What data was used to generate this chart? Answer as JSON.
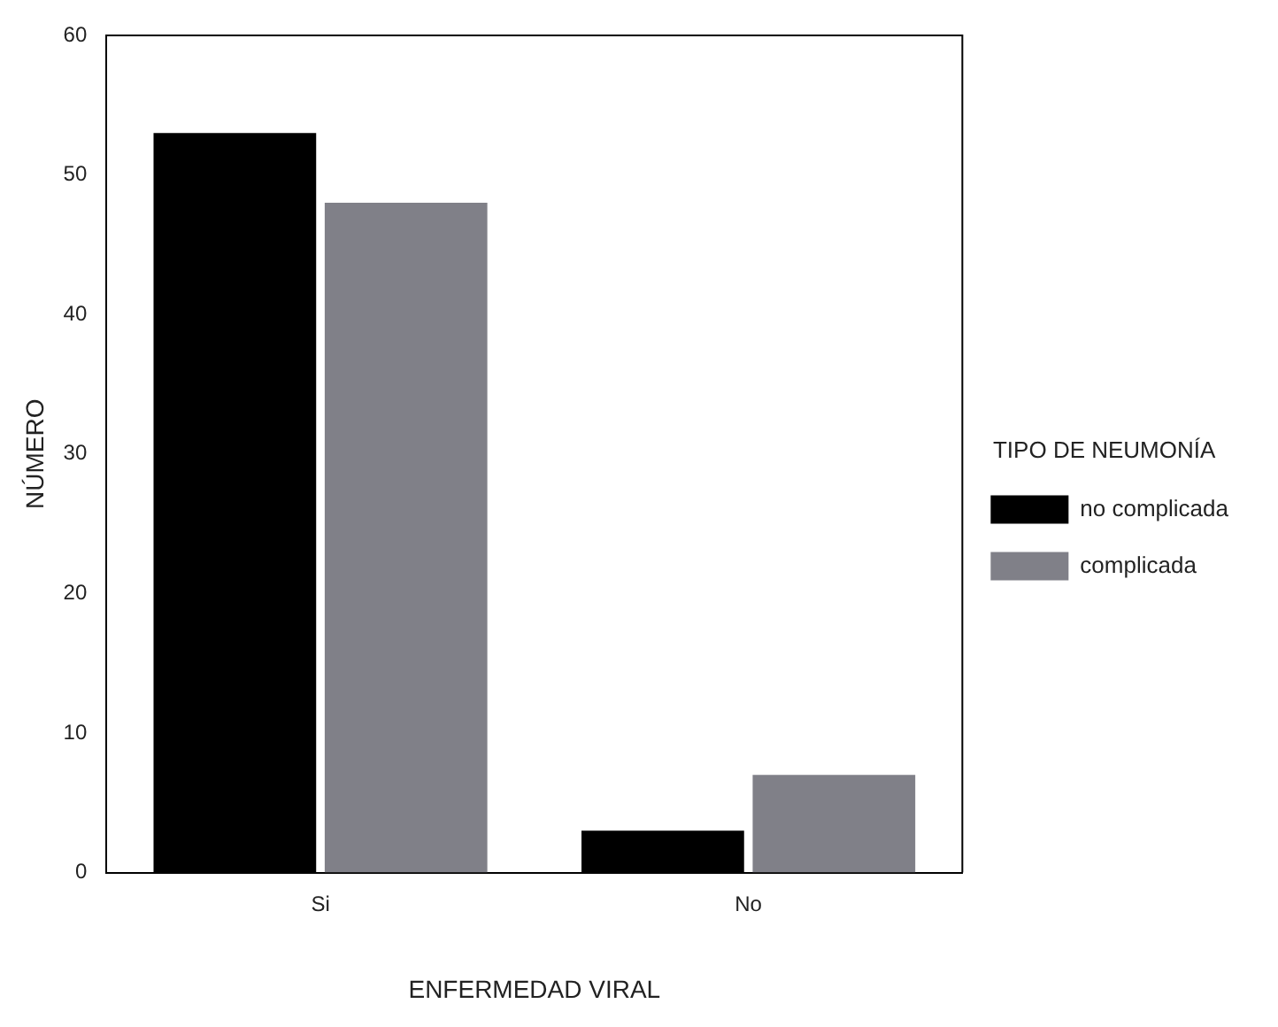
{
  "chart_data": {
    "type": "bar",
    "xlabel": "ENFERMEDAD VIRAL",
    "ylabel": "NÚMERO",
    "legend_title": "TIPO DE NEUMONÍA",
    "categories": [
      "Si",
      "No"
    ],
    "series": [
      {
        "name": "no complicada",
        "color": "#000000",
        "values": [
          53,
          3
        ]
      },
      {
        "name": "complicada",
        "color": "#808088",
        "values": [
          48,
          7
        ]
      }
    ],
    "ylim": [
      0,
      60
    ],
    "yticks": [
      0,
      10,
      20,
      30,
      40,
      50,
      60
    ],
    "grid": false,
    "legend": "right"
  }
}
